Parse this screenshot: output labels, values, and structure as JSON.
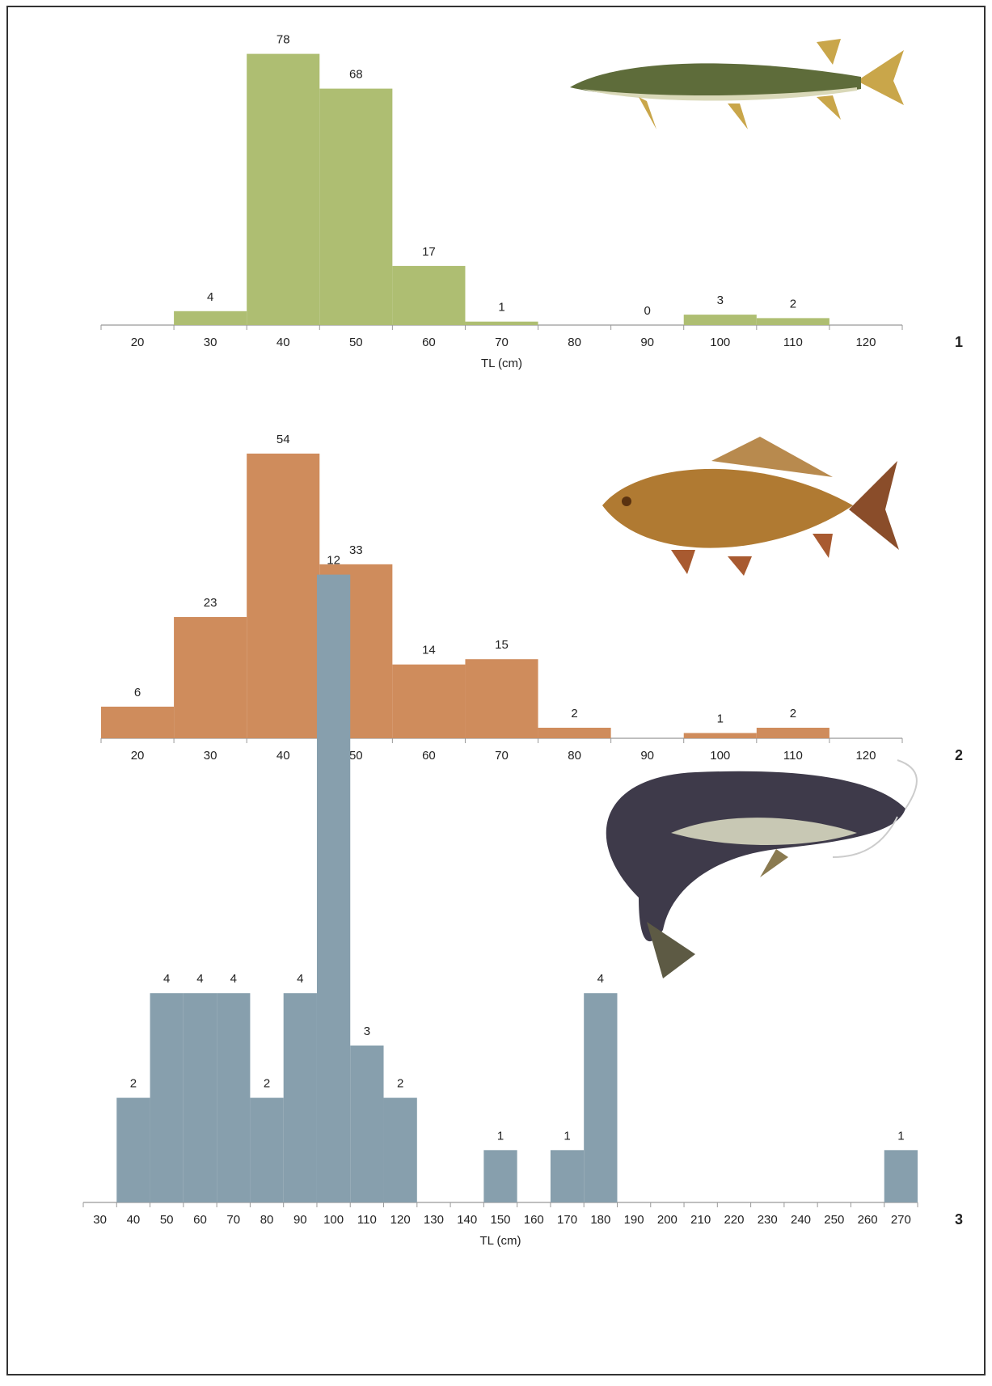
{
  "chart_data": [
    {
      "type": "bar",
      "panel": "1",
      "x_label": "TL (cm)",
      "color": "#aebe72",
      "categories": [
        "20",
        "30",
        "40",
        "50",
        "60",
        "70",
        "80",
        "90",
        "100",
        "110",
        "120"
      ],
      "values": [
        null,
        4,
        78,
        68,
        17,
        1,
        null,
        0,
        3,
        2,
        null
      ]
    },
    {
      "type": "bar",
      "panel": "2",
      "color": "#cf8c5c",
      "categories": [
        "20",
        "30",
        "40",
        "50",
        "60",
        "70",
        "80",
        "90",
        "100",
        "110",
        "120"
      ],
      "values": [
        6,
        23,
        54,
        33,
        14,
        15,
        2,
        null,
        1,
        2,
        null
      ]
    },
    {
      "type": "bar",
      "panel": "3",
      "x_label": "TL (cm)",
      "color": "#879fad",
      "categories": [
        "30",
        "40",
        "50",
        "60",
        "70",
        "80",
        "90",
        "100",
        "110",
        "120",
        "130",
        "140",
        "150",
        "160",
        "170",
        "180",
        "190",
        "200",
        "210",
        "220",
        "230",
        "240",
        "250",
        "260",
        "270"
      ],
      "values": [
        null,
        2,
        4,
        4,
        4,
        2,
        4,
        12,
        3,
        2,
        null,
        null,
        1,
        null,
        1,
        4,
        null,
        null,
        null,
        null,
        null,
        null,
        null,
        null,
        1
      ]
    }
  ]
}
